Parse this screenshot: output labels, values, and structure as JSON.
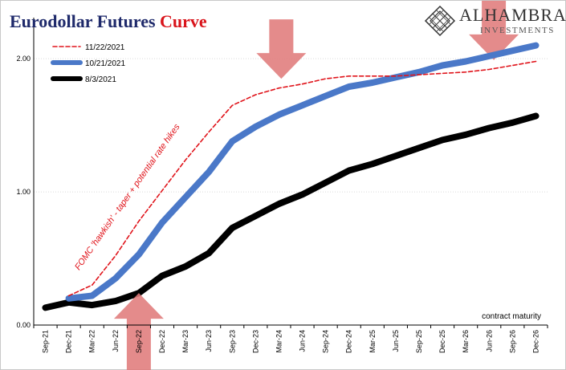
{
  "title": {
    "main": "Eurodollar Futures ",
    "accent": "Curve"
  },
  "logo": {
    "name": "ALHAMBRA",
    "sub": "INVESTMENTS",
    "icon": "diamond-lattice-icon"
  },
  "colors": {
    "dashed_series": "#e0141b",
    "blue_series": "#4a78c8",
    "black_series": "#000000",
    "arrow": "#e07b7b",
    "title": "#1f2a6b",
    "annotation": "#e0141b"
  },
  "chart_data": {
    "type": "line",
    "x": [
      "Sep-21",
      "Dec-21",
      "Mar-22",
      "Jun-22",
      "Sep-22",
      "Dec-22",
      "Mar-23",
      "Jun-23",
      "Sep-23",
      "Dec-23",
      "Mar-24",
      "Jun-24",
      "Sep-24",
      "Dec-24",
      "Mar-25",
      "Jun-25",
      "Sep-25",
      "Dec-25",
      "Mar-26",
      "Jun-26",
      "Sep-26",
      "Dec-26"
    ],
    "ylim": [
      0,
      2.2
    ],
    "yticks": [
      0,
      1,
      2
    ],
    "ytick_labels": [
      "0.00",
      "1.00",
      "2.00"
    ],
    "xlabel": "contract maturity",
    "legend_position": "top-left",
    "series": [
      {
        "name": "11/22/2021",
        "style": "dashed",
        "values": [
          null,
          0.22,
          0.3,
          0.52,
          0.78,
          1.01,
          1.24,
          1.45,
          1.65,
          1.73,
          1.78,
          1.81,
          1.85,
          1.87,
          1.87,
          1.87,
          1.88,
          1.89,
          1.9,
          1.92,
          1.95,
          1.98
        ]
      },
      {
        "name": "10/21/2021",
        "style": "thick-blue",
        "values": [
          null,
          0.2,
          0.22,
          0.35,
          0.53,
          0.77,
          0.96,
          1.15,
          1.38,
          1.49,
          1.58,
          1.65,
          1.72,
          1.79,
          1.82,
          1.86,
          1.9,
          1.95,
          1.98,
          2.02,
          2.06,
          2.1
        ]
      },
      {
        "name": "8/3/2021",
        "style": "thick-black",
        "values": [
          0.13,
          0.17,
          0.15,
          0.18,
          0.24,
          0.37,
          0.44,
          0.54,
          0.73,
          0.82,
          0.91,
          0.98,
          1.07,
          1.16,
          1.21,
          1.27,
          1.33,
          1.39,
          1.43,
          1.48,
          1.52,
          1.57
        ]
      }
    ],
    "annotations": [
      {
        "text": "FOMC 'hawkish' - taper + potential rate hikes",
        "anchor_x": 3.6,
        "anchor_y": 0.95,
        "angle": -55
      }
    ],
    "arrows": [
      {
        "direction": "down",
        "target_x": 10.1,
        "tip_y": 1.85
      },
      {
        "direction": "down",
        "target_x": 19.2,
        "tip_y": 1.99
      },
      {
        "direction": "up",
        "target_x": 4.0,
        "tip_y": 0.24
      }
    ]
  }
}
